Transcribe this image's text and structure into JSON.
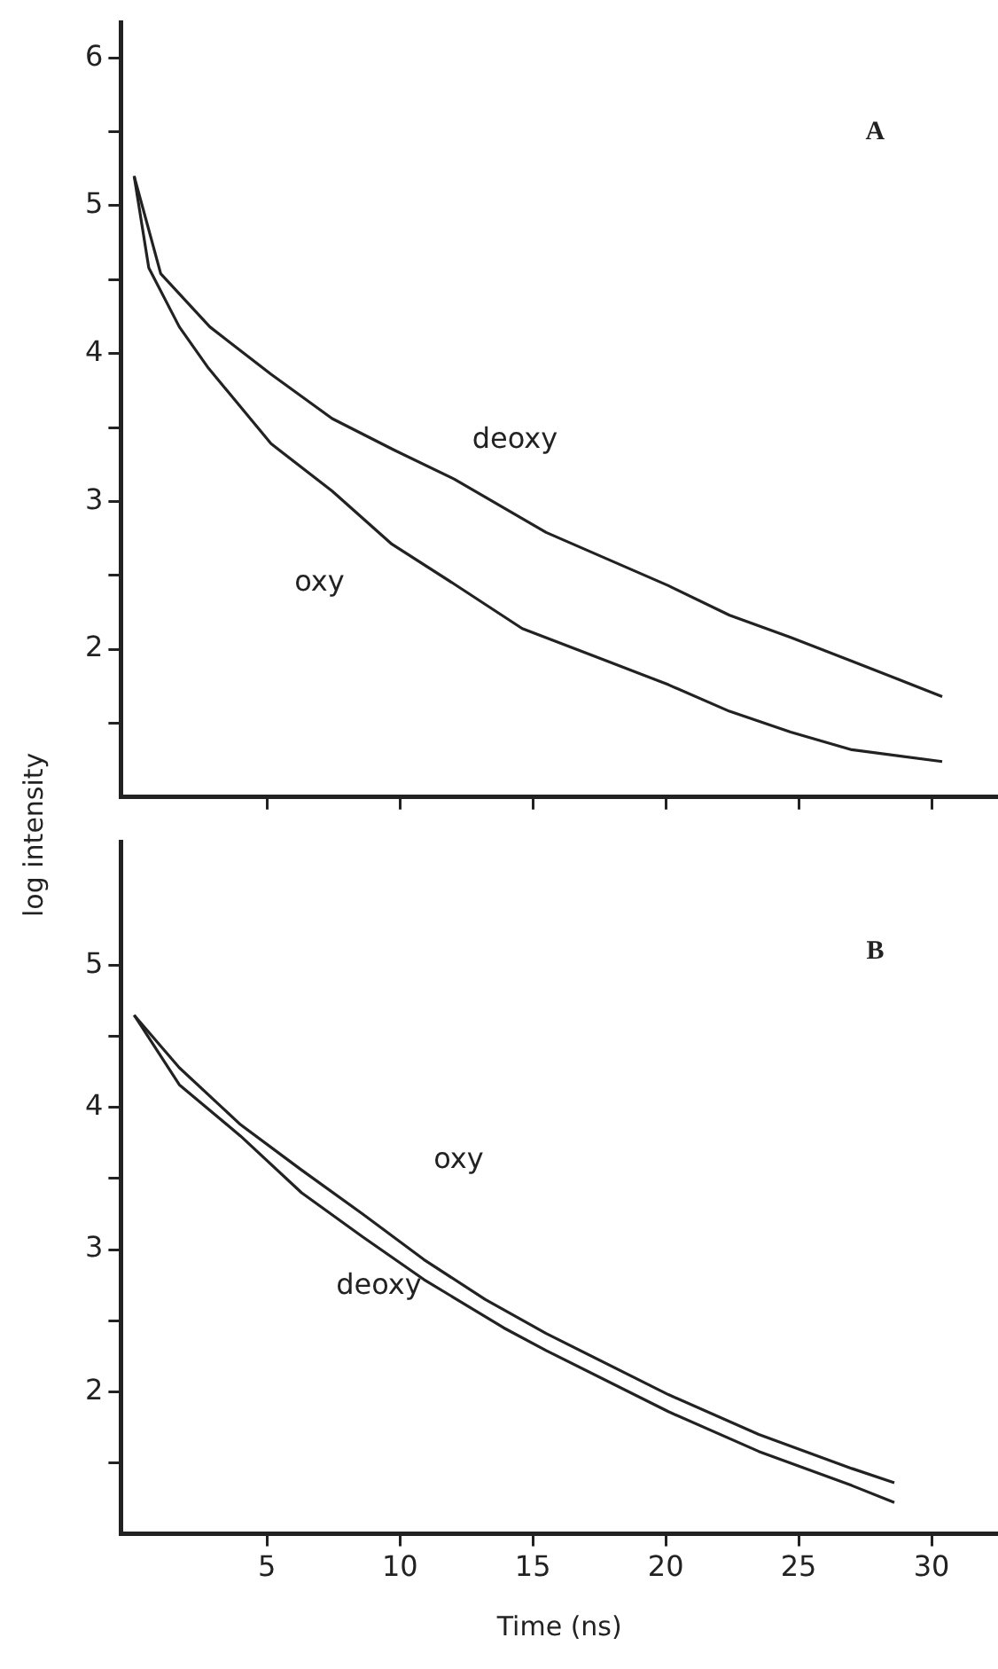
{
  "chart_data": [
    {
      "type": "line",
      "ylabel": "log intensity",
      "annotations": [
        "A"
      ],
      "xlim": [
        -0.5,
        32.5
      ],
      "ylim": [
        1,
        6.24
      ],
      "xticks": [
        {
          "value": 5,
          "label": null
        },
        {
          "value": 10,
          "label": null
        },
        {
          "value": 15,
          "label": null
        },
        {
          "value": 20,
          "label": null
        },
        {
          "value": 25,
          "label": null
        },
        {
          "value": 30,
          "label": null
        }
      ],
      "yticks": [
        {
          "value": 1.5,
          "label": null
        },
        2,
        {
          "value": 2.5,
          "label": null
        },
        3,
        {
          "value": 3.5,
          "label": null
        },
        4,
        {
          "value": 4.5,
          "label": null
        },
        5,
        {
          "value": 5.5,
          "label": null
        },
        6
      ],
      "tick_labels": "y",
      "legend": false,
      "grid": false,
      "marker": "none",
      "line_style": "solid",
      "series": [
        {
          "name": "deoxy",
          "color": "#222222",
          "x": [
            0,
            1.0,
            2.85,
            5.15,
            7.45,
            9.75,
            12.05,
            15.5,
            20.1,
            22.4,
            24.7,
            27,
            30.4
          ],
          "values": [
            5.2,
            4.54,
            4.18,
            3.86,
            3.56,
            3.35,
            3.15,
            2.79,
            2.43,
            2.23,
            2.08,
            1.92,
            1.68
          ]
        },
        {
          "name": "oxy",
          "color": "#222222",
          "x": [
            0,
            0.55,
            1.7,
            2.8,
            5.15,
            7.45,
            9.7,
            12.05,
            14.6,
            17.8,
            20.1,
            22.4,
            24.7,
            27,
            30.4
          ],
          "values": [
            5.2,
            4.58,
            4.18,
            3.9,
            3.39,
            3.07,
            2.71,
            2.44,
            2.14,
            1.92,
            1.76,
            1.58,
            1.44,
            1.32,
            1.24
          ]
        }
      ]
    },
    {
      "type": "line",
      "xlabel": "Time (ns)",
      "annotations": [
        "B"
      ],
      "xlim": [
        -0.5,
        32.5
      ],
      "ylim": [
        1,
        5.87
      ],
      "xticks": [
        5,
        10,
        15,
        20,
        25,
        30
      ],
      "yticks": [
        {
          "value": 1.5,
          "label": null
        },
        2,
        {
          "value": 2.5,
          "label": null
        },
        3,
        {
          "value": 3.5,
          "label": null
        },
        4,
        {
          "value": 4.5,
          "label": null
        },
        5
      ],
      "legend": false,
      "grid": false,
      "marker": "none",
      "line_style": "solid",
      "series": [
        {
          "name": "oxy",
          "color": "#222222",
          "x": [
            0,
            1.7,
            4.0,
            6.3,
            8.6,
            10.9,
            13.2,
            15.5,
            20.1,
            23.5,
            27,
            28.6
          ],
          "values": [
            4.65,
            4.28,
            3.88,
            3.56,
            3.25,
            2.93,
            2.65,
            2.41,
            1.98,
            1.7,
            1.46,
            1.36
          ]
        },
        {
          "name": "deoxy",
          "color": "#222222",
          "x": [
            0,
            1.7,
            4.0,
            6.3,
            8.6,
            10.9,
            13.9,
            15.5,
            20.1,
            23.5,
            27,
            28.6
          ],
          "values": [
            4.65,
            4.16,
            3.8,
            3.4,
            3.09,
            2.79,
            2.45,
            2.29,
            1.86,
            1.58,
            1.34,
            1.22
          ]
        }
      ]
    }
  ]
}
